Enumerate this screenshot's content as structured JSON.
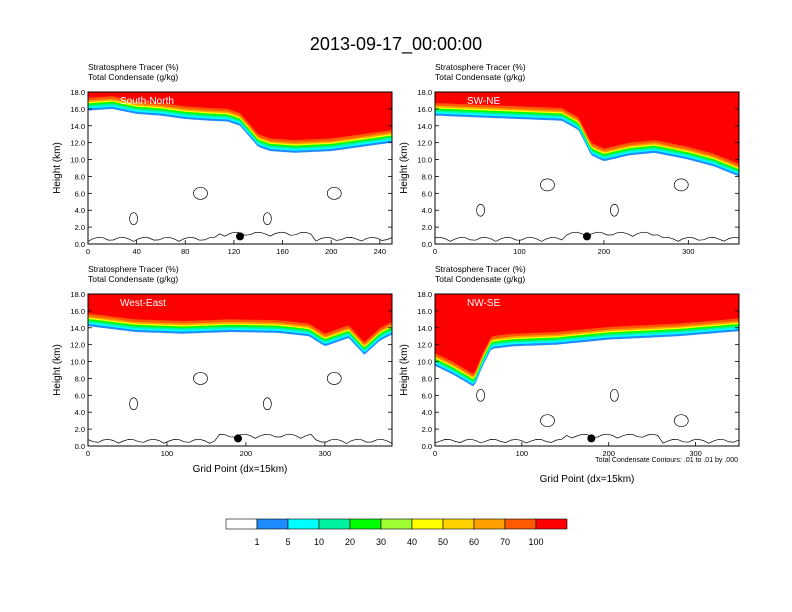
{
  "figure": {
    "title": "2013-09-17_00:00:00",
    "contour_note": "Total Condensate Contours: .01 to .01 by .000"
  },
  "colorbar": {
    "levels": [
      "1",
      "5",
      "10",
      "20",
      "30",
      "40",
      "50",
      "60",
      "70",
      "100"
    ],
    "colors": [
      "#ffffff",
      "#1e8cff",
      "#00ffff",
      "#00f2a0",
      "#00ff00",
      "#a0ff32",
      "#ffff00",
      "#ffd200",
      "#ffa000",
      "#ff5a00",
      "#ff0000"
    ]
  },
  "chart_data": [
    {
      "type": "heatmap",
      "panel": "South-North",
      "label_line1": "Stratosphere Tracer   (%)",
      "label_line2": "Total Condensate   (g/kg)",
      "ylabel": "Height (km)",
      "xlabel": "",
      "xlim": [
        0,
        250
      ],
      "ylim": [
        0,
        18
      ],
      "xticks": [
        "0",
        "40",
        "80",
        "120",
        "160",
        "200",
        "240"
      ],
      "xtick_values": [
        0,
        40,
        80,
        120,
        160,
        200,
        240
      ],
      "yticks": [
        "0.0",
        "2.0",
        "4.0",
        "6.0",
        "8.0",
        "10.0",
        "12.0",
        "14.0",
        "16.0",
        "18.0"
      ],
      "tracer_base_km": [
        [
          0,
          15.8
        ],
        [
          20,
          16.0
        ],
        [
          40,
          15.4
        ],
        [
          60,
          15.2
        ],
        [
          80,
          14.8
        ],
        [
          100,
          14.6
        ],
        [
          115,
          14.5
        ],
        [
          125,
          14.0
        ],
        [
          140,
          11.5
        ],
        [
          150,
          11.0
        ],
        [
          170,
          10.8
        ],
        [
          200,
          11.0
        ],
        [
          230,
          11.6
        ],
        [
          250,
          12.0
        ]
      ],
      "marker_x": 125,
      "marker_y_km": 0.9
    },
    {
      "type": "heatmap",
      "panel": "SW-NE",
      "label_line1": "Stratosphere Tracer   (%)",
      "label_line2": "Total Condensate   (g/kg)",
      "ylabel": "Height (km)",
      "xlabel": "",
      "xlim": [
        0,
        360
      ],
      "ylim": [
        0,
        18
      ],
      "xticks": [
        "0",
        "100",
        "200",
        "300"
      ],
      "xtick_values": [
        0,
        100,
        200,
        300
      ],
      "yticks": [
        "0.0",
        "2.0",
        "4.0",
        "6.0",
        "8.0",
        "10.0",
        "12.0",
        "14.0",
        "16.0",
        "18.0"
      ],
      "tracer_base_km": [
        [
          0,
          15.2
        ],
        [
          50,
          15.0
        ],
        [
          100,
          14.8
        ],
        [
          150,
          14.6
        ],
        [
          170,
          13.5
        ],
        [
          185,
          10.5
        ],
        [
          200,
          9.8
        ],
        [
          230,
          10.5
        ],
        [
          260,
          10.8
        ],
        [
          300,
          10.0
        ],
        [
          330,
          9.2
        ],
        [
          360,
          8.0
        ]
      ],
      "marker_x": 180,
      "marker_y_km": 0.9
    },
    {
      "type": "heatmap",
      "panel": "West-East",
      "label_line1": "Stratosphere Tracer   (%)",
      "label_line2": "Total Condensate   (g/kg)",
      "ylabel": "Height (km)",
      "xlabel": "Grid Point (dx=15km)",
      "xlim": [
        0,
        385
      ],
      "ylim": [
        0,
        18
      ],
      "xticks": [
        "0",
        "100",
        "200",
        "300"
      ],
      "xtick_values": [
        0,
        100,
        200,
        300
      ],
      "yticks": [
        "0.0",
        "2.0",
        "4.0",
        "6.0",
        "8.0",
        "10.0",
        "12.0",
        "14.0",
        "16.0",
        "18.0"
      ],
      "tracer_base_km": [
        [
          0,
          14.2
        ],
        [
          60,
          13.5
        ],
        [
          120,
          13.3
        ],
        [
          180,
          13.5
        ],
        [
          240,
          13.4
        ],
        [
          280,
          13.0
        ],
        [
          300,
          11.8
        ],
        [
          330,
          12.8
        ],
        [
          350,
          10.8
        ],
        [
          370,
          12.5
        ],
        [
          385,
          13.2
        ]
      ],
      "marker_x": 190,
      "marker_y_km": 0.9
    },
    {
      "type": "heatmap",
      "panel": "NW-SE",
      "label_line1": "Stratosphere Tracer   (%)",
      "label_line2": "Total Condensate   (g/kg)",
      "ylabel": "Height (km)",
      "xlabel": "Grid Point (dx=15km)",
      "xlim": [
        0,
        350
      ],
      "ylim": [
        0,
        18
      ],
      "xticks": [
        "0",
        "100",
        "200",
        "300"
      ],
      "xtick_values": [
        0,
        100,
        200,
        300
      ],
      "yticks": [
        "0.0",
        "2.0",
        "4.0",
        "6.0",
        "8.0",
        "10.0",
        "12.0",
        "14.0",
        "16.0",
        "18.0"
      ],
      "tracer_base_km": [
        [
          0,
          9.5
        ],
        [
          20,
          8.5
        ],
        [
          45,
          7.0
        ],
        [
          55,
          9.5
        ],
        [
          65,
          11.5
        ],
        [
          90,
          11.8
        ],
        [
          140,
          12.0
        ],
        [
          200,
          12.6
        ],
        [
          280,
          13.0
        ],
        [
          350,
          13.6
        ]
      ],
      "marker_x": 180,
      "marker_y_km": 0.9
    }
  ]
}
